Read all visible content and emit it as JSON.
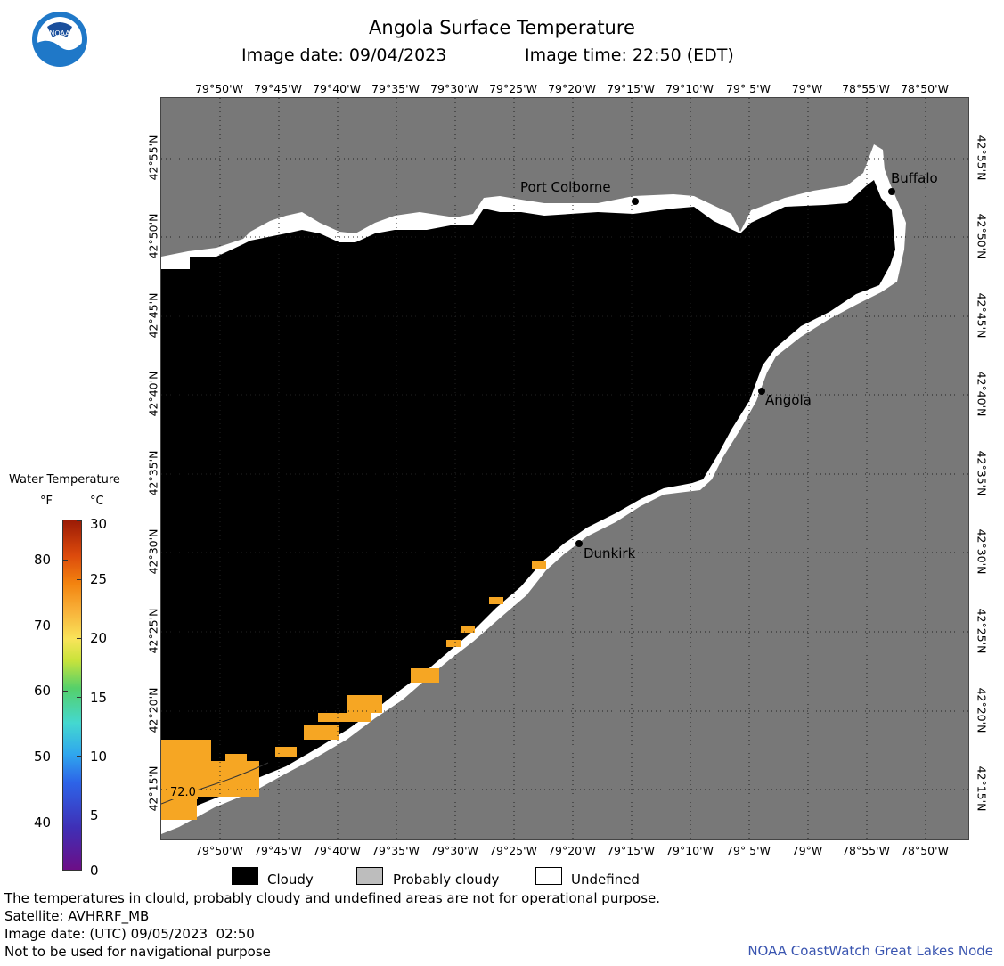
{
  "title": "Angola Surface Temperature",
  "image_date_label": "Image date: 09/04/2023",
  "image_time_label": "Image time: 22:50 (EDT)",
  "logo_text": "NOAA",
  "lon_labels": [
    "79°50'W",
    "79°45'W",
    "79°40'W",
    "79°35'W",
    "79°30'W",
    "79°25'W",
    "79°20'W",
    "79°15'W",
    "79°10'W",
    "79° 5'W",
    "79°W",
    "78°55'W",
    "78°50'W"
  ],
  "lat_labels": [
    "42°55'N",
    "42°50'N",
    "42°45'N",
    "42°40'N",
    "42°35'N",
    "42°30'N",
    "42°25'N",
    "42°20'N",
    "42°15'N"
  ],
  "cities": {
    "port_colborne": "Port Colborne",
    "buffalo": "Buffalo",
    "angola": "Angola",
    "dunkirk": "Dunkirk"
  },
  "isotherm_label": "72.0",
  "legend": {
    "title": "Water Temperature",
    "unit_f": "°F",
    "unit_c": "°C",
    "f_ticks": [
      "80",
      "70",
      "60",
      "50",
      "40"
    ],
    "c_ticks": [
      "30",
      "25",
      "20",
      "15",
      "10",
      "5",
      "0"
    ]
  },
  "key": {
    "cloudy": "Cloudy",
    "probably_cloudy": "Probably cloudy",
    "undefined": "Undefined"
  },
  "footer": {
    "disclaimer": "The temperatures in clould, probably cloudy and undefined areas are not for operational purpose.",
    "satellite": "Satellite: AVHRRF_MB",
    "utc_date": "Image date: (UTC) 09/05/2023  02:50",
    "nav_warning": "Not to be used for navigational purpose",
    "credit": "NOAA CoastWatch Great Lakes Node"
  },
  "colors": {
    "land": "#787878",
    "cloud": "#000000",
    "undefined": "#ffffff",
    "warm_water": "#f6a623",
    "credit": "#3a55b0"
  }
}
